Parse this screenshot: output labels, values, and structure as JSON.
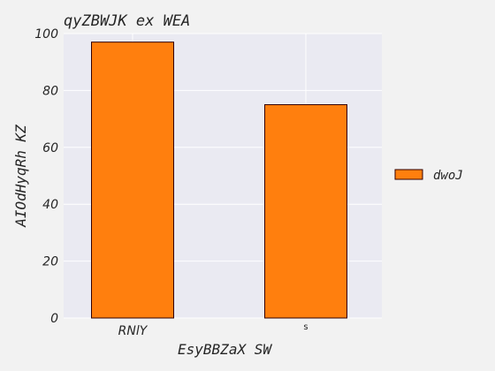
{
  "chart_data": {
    "type": "bar",
    "title": "qyZBWJK ex WEA",
    "xlabel": "EsyBBZaX SW",
    "ylabel": "AIOdHyqRh KZ",
    "categories": [
      "RNlY",
      "s"
    ],
    "series": [
      {
        "name": "dwoJ",
        "values": [
          97,
          75
        ],
        "color": "#ff7f0e"
      }
    ],
    "ylim": [
      0,
      100
    ],
    "yticks": [
      0,
      20,
      40,
      60,
      80,
      100
    ],
    "grid": true,
    "legend_position": "right",
    "plot_background": "#eaeaf2",
    "bar_edge_color": "#330000"
  }
}
